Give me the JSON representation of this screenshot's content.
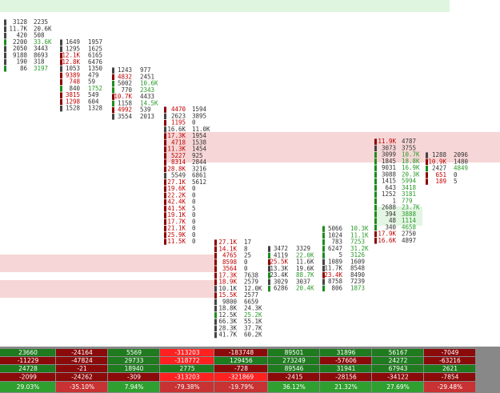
{
  "footprint": {
    "columns": [
      {
        "rows": [
          [
            "3128",
            "2235"
          ],
          [
            "11.7K",
            "20.6K"
          ],
          [
            "420",
            "508"
          ],
          [
            "2200",
            "33.6K"
          ],
          [
            "2050",
            "3443"
          ],
          [
            "9188",
            "8693"
          ],
          [
            "190",
            "318"
          ],
          [
            "86",
            "3197"
          ]
        ]
      },
      {
        "rows": [
          [
            "1649",
            "1957"
          ],
          [
            "1295",
            "1625"
          ],
          [
            "12.1K",
            "6165"
          ],
          [
            "12.8K",
            "6476"
          ],
          [
            "1053",
            "1350"
          ],
          [
            "9389",
            "479"
          ],
          [
            "748",
            "59"
          ],
          [
            "840",
            "1752"
          ],
          [
            "3815",
            "549"
          ],
          [
            "1298",
            "604"
          ],
          [
            "1528",
            "1328"
          ]
        ]
      },
      {
        "rows": [
          [
            "1243",
            "977"
          ],
          [
            "4832",
            "2451"
          ],
          [
            "5002",
            "10.6K"
          ],
          [
            "770",
            "2343"
          ],
          [
            "10.7K",
            "4433"
          ],
          [
            "1158",
            "14.5K"
          ],
          [
            "4992",
            "539"
          ],
          [
            "3554",
            "2013"
          ]
        ]
      },
      {
        "rows": [
          [
            "4470",
            "1594"
          ],
          [
            "2623",
            "3895"
          ],
          [
            "1195",
            "0"
          ],
          [
            "16.6K",
            "11.0K"
          ],
          [
            "17.3K",
            "1954"
          ],
          [
            "4718",
            "1538"
          ],
          [
            "11.3K",
            "1454"
          ],
          [
            "5227",
            "925"
          ],
          [
            "8314",
            "2844"
          ],
          [
            "28.8K",
            "3216"
          ],
          [
            "5549",
            "6861"
          ],
          [
            "27.1K",
            "5612"
          ],
          [
            "19.6K",
            "0"
          ],
          [
            "22.2K",
            "0"
          ],
          [
            "42.4K",
            "0"
          ],
          [
            "41.5K",
            "5"
          ],
          [
            "19.1K",
            "0"
          ],
          [
            "17.7K",
            "0"
          ],
          [
            "21.1K",
            "0"
          ],
          [
            "25.9K",
            "0"
          ],
          [
            "11.5K",
            "0"
          ]
        ]
      },
      {
        "rows": [
          [
            "27.1K",
            "17"
          ],
          [
            "14.1K",
            "8"
          ],
          [
            "4765",
            "25"
          ],
          [
            "8598",
            "0"
          ],
          [
            "3564",
            "0"
          ],
          [
            "17.3K",
            "7638"
          ],
          [
            "18.9K",
            "2579"
          ],
          [
            "10.1K",
            "12.0K"
          ],
          [
            "15.5K",
            "2577"
          ],
          [
            "9800",
            "6659"
          ],
          [
            "18.8K",
            "24.3K"
          ],
          [
            "12.5K",
            "25.2K"
          ],
          [
            "66.3K",
            "55.1K"
          ],
          [
            "28.3K",
            "37.7K"
          ],
          [
            "41.7K",
            "60.2K"
          ]
        ]
      },
      {
        "rows": [
          [
            "3472",
            "3329"
          ],
          [
            "4119",
            "22.0K"
          ],
          [
            "25.5K",
            "11.6K"
          ],
          [
            "13.3K",
            "19.6K"
          ],
          [
            "23.4K",
            "88.7K"
          ],
          [
            "3029",
            "3037"
          ],
          [
            "6286",
            "20.4K"
          ]
        ]
      },
      {
        "rows": [
          [
            "5066",
            "10.3K"
          ],
          [
            "1024",
            "11.1K"
          ],
          [
            "783",
            "7253"
          ],
          [
            "6247",
            "31.2K"
          ],
          [
            "5",
            "3126"
          ],
          [
            "1089",
            "1609"
          ],
          [
            "11.7K",
            "8548"
          ],
          [
            "23.4K",
            "8490"
          ],
          [
            "8758",
            "7239"
          ],
          [
            "806",
            "1873"
          ]
        ]
      },
      {
        "rows": [
          [
            "11.9K",
            "4787"
          ],
          [
            "3073",
            "3755"
          ],
          [
            "3099",
            "10.7K"
          ],
          [
            "1845",
            "18.8K"
          ],
          [
            "9031",
            "16.9K"
          ],
          [
            "3088",
            "20.3K"
          ],
          [
            "1415",
            "5994"
          ],
          [
            "643",
            "3418"
          ],
          [
            "1252",
            "3181"
          ],
          [
            "1",
            "779"
          ],
          [
            "2688",
            "23.7K"
          ],
          [
            "394",
            "3888"
          ],
          [
            "48",
            "1114"
          ],
          [
            "340",
            "4658"
          ],
          [
            "17.9K",
            "2750"
          ],
          [
            "16.6K",
            "4897"
          ]
        ]
      },
      {
        "rows": [
          [
            "1288",
            "2096"
          ],
          [
            "10.9K",
            "1480"
          ],
          [
            "2427",
            "4849"
          ],
          [
            "651",
            "0"
          ],
          [
            "189",
            "5"
          ]
        ]
      }
    ]
  },
  "summary": {
    "rows": [
      [
        "23660",
        "-24164",
        "5569",
        "-313203",
        "-183748",
        "89501",
        "31896",
        "56167",
        "-7049"
      ],
      [
        "-11229",
        "-47824",
        "29733",
        "-318772",
        "129456",
        "273249",
        "-57606",
        "24272",
        "-63216"
      ],
      [
        "24728",
        "-21",
        "18940",
        "2775",
        "-728",
        "89546",
        "31941",
        "67943",
        "2621"
      ],
      [
        "-2099",
        "-24262",
        "-309",
        "-313203",
        "-321869",
        "-2415",
        "-28156",
        "-34122",
        "-7854"
      ],
      [
        "29.03%",
        "-35.10%",
        "7.94%",
        "-79.38%",
        "-19.79%",
        "36.12%",
        "21.32%",
        "27.69%",
        "-29.48%"
      ]
    ]
  }
}
